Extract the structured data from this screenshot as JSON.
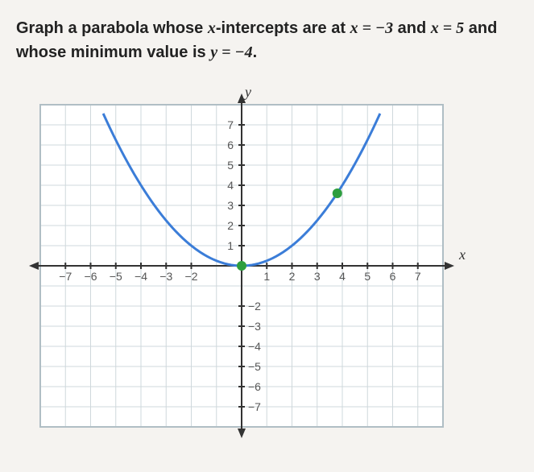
{
  "prompt": {
    "line1_a": "Graph a parabola whose ",
    "x_eq": "x",
    "line1_b": "-intercepts are at ",
    "eq1": "x = −3",
    "line1_c": " and ",
    "eq2": "x = 5",
    "line1_d": " and",
    "line2_a": "whose minimum value is ",
    "eq3": "y = −4",
    "line2_b": "."
  },
  "chart": {
    "xlim": [
      -8,
      8
    ],
    "ylim": [
      -8,
      8
    ],
    "xticks": [
      -7,
      -6,
      -5,
      -4,
      -3,
      -2,
      1,
      2,
      3,
      4,
      5,
      6,
      7
    ],
    "yticks_pos": [
      1,
      2,
      3,
      4,
      5,
      6,
      7
    ],
    "yticks_neg": [
      -2,
      -3,
      -4,
      -5,
      -6,
      -7
    ],
    "x_axis_label": "x",
    "y_axis_label": "y",
    "grid_color": "#cfd8dc",
    "axis_color": "#333333",
    "curve_color": "#3b7dd8",
    "point_color": "#2e9e3f",
    "background": "#ffffff",
    "parabola": {
      "a": 0.25,
      "h": 0,
      "k": 0,
      "xmin": -5.5,
      "xmax": 5.5
    },
    "points": [
      {
        "x": 0,
        "y": 0
      },
      {
        "x": 3.8,
        "y": 3.6
      }
    ],
    "tick_fontsize": 14,
    "axis_label_fontsize": 18
  }
}
